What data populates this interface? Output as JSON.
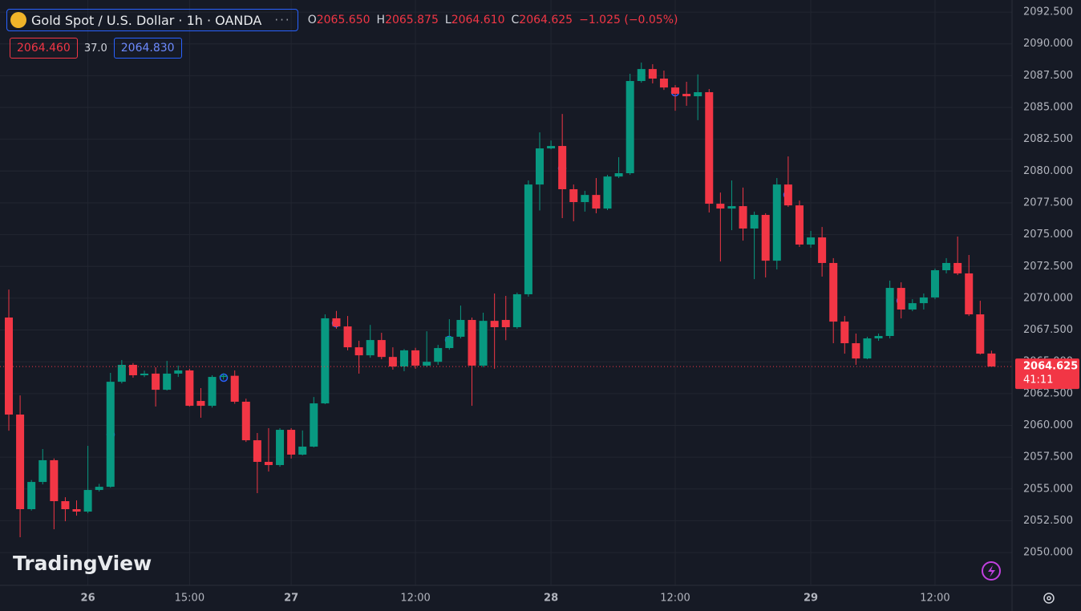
{
  "chart_data": {
    "type": "candlestick",
    "title": "Gold Spot / U.S. Dollar · 1h · OANDA",
    "legend_letters": [
      "O",
      "H",
      "L",
      "C"
    ],
    "legend_values": [
      "2065.650",
      "2065.875",
      "2064.610",
      "2064.625"
    ],
    "change": "−1.025 (−0.05%)",
    "bid": "2064.460",
    "spread": "37.0",
    "ask": "2064.830",
    "countdown": "41:11",
    "watermark": "TradingView",
    "up_color": "#089981",
    "down_color": "#f23645",
    "grid": true,
    "categories": [
      null,
      null,
      null,
      null,
      null,
      null,
      null,
      "26",
      null,
      null,
      null,
      null,
      null,
      null,
      null,
      null,
      "15:00",
      null,
      null,
      null,
      null,
      null,
      null,
      null,
      null,
      "27",
      null,
      null,
      null,
      null,
      null,
      null,
      null,
      null,
      null,
      null,
      "12:00",
      null,
      null,
      null,
      null,
      null,
      null,
      null,
      null,
      null,
      null,
      null,
      "28",
      null,
      null,
      null,
      null,
      null,
      null,
      null,
      null,
      null,
      null,
      "12:00",
      null,
      null,
      null,
      null,
      null,
      null,
      null,
      null,
      null,
      null,
      null,
      "29",
      null,
      null,
      null,
      null,
      null,
      null,
      null,
      null,
      null,
      null,
      "12:00",
      null,
      null,
      null,
      null,
      null
    ],
    "open": [
      2068.48,
      2060.85,
      2053.41,
      2055.55,
      2057.26,
      2054.04,
      2053.41,
      2053.22,
      2054.92,
      2055.17,
      2063.43,
      2064.76,
      2063.94,
      2064.07,
      2062.8,
      2064.07,
      2064.32,
      2061.92,
      2061.54,
      2063.81,
      2063.9,
      2061.86,
      2058.83,
      2057.13,
      2056.88,
      2059.65,
      2057.7,
      2058.33,
      2061.73,
      2068.42,
      2067.78,
      2066.14,
      2065.51,
      2066.71,
      2065.38,
      2064.63,
      2065.9,
      2064.7,
      2065.0,
      2066.08,
      2066.97,
      2068.29,
      2064.7,
      2068.22,
      2068.29,
      2067.72,
      2070.31,
      2078.94,
      2081.78,
      2081.97,
      2078.57,
      2077.56,
      2078.12,
      2077.05,
      2079.57,
      2079.83,
      2087.08,
      2088.02,
      2087.27,
      2086.57,
      2086.07,
      2085.88,
      2086.2,
      2077.43,
      2077.05,
      2077.24,
      2075.48,
      2076.55,
      2072.95,
      2078.94,
      2077.3,
      2074.22,
      2074.78,
      2072.77,
      2068.16,
      2066.46,
      2065.26,
      2066.84,
      2067.03,
      2070.81,
      2069.11,
      2069.61,
      2070.06,
      2072.2,
      2072.77,
      2071.95,
      2068.73,
      2065.65
    ],
    "high": [
      2070.68,
      2062.36,
      2055.7,
      2058.14,
      2057.4,
      2054.35,
      2054.1,
      2058.39,
      2055.4,
      2064.13,
      2065.14,
      2064.9,
      2064.3,
      2064.57,
      2065.07,
      2064.7,
      2064.45,
      2062.93,
      2063.94,
      2064.1,
      2064.32,
      2062.1,
      2059.4,
      2059.78,
      2059.78,
      2059.78,
      2059.6,
      2062.23,
      2068.73,
      2069.0,
      2068.6,
      2066.65,
      2067.9,
      2067.28,
      2066.14,
      2066.0,
      2066.1,
      2067.4,
      2066.33,
      2068.35,
      2069.42,
      2068.48,
      2068.86,
      2070.37,
      2070.18,
      2070.44,
      2079.26,
      2083.04,
      2082.4,
      2084.49,
      2078.94,
      2078.44,
      2079.45,
      2079.7,
      2081.09,
      2087.65,
      2088.53,
      2088.4,
      2087.9,
      2086.76,
      2087.02,
      2087.6,
      2086.45,
      2078.31,
      2079.26,
      2078.7,
      2076.81,
      2076.68,
      2079.45,
      2081.15,
      2077.68,
      2075.29,
      2075.6,
      2073.15,
      2068.6,
      2067.22,
      2066.97,
      2067.22,
      2071.38,
      2071.25,
      2069.92,
      2070.37,
      2072.33,
      2073.15,
      2074.85,
      2073.4,
      2069.8,
      2065.875
    ],
    "low": [
      2059.58,
      2051.2,
      2053.3,
      2055.36,
      2051.83,
      2052.46,
      2052.9,
      2053.1,
      2054.8,
      2055.1,
      2063.3,
      2063.75,
      2063.8,
      2061.48,
      2062.74,
      2063.81,
      2061.48,
      2060.6,
      2061.4,
      2063.6,
      2061.7,
      2058.7,
      2054.67,
      2056.37,
      2056.75,
      2057.39,
      2057.64,
      2058.27,
      2061.67,
      2067.6,
      2065.9,
      2064.07,
      2065.32,
      2065.2,
      2064.38,
      2064.26,
      2064.45,
      2064.57,
      2064.76,
      2065.95,
      2066.84,
      2061.54,
      2064.57,
      2064.45,
      2066.7,
      2067.6,
      2070.12,
      2076.9,
      2081.71,
      2076.3,
      2076.05,
      2076.81,
      2076.68,
      2076.93,
      2079.45,
      2079.7,
      2086.95,
      2086.89,
      2086.38,
      2084.74,
      2085.13,
      2084.0,
      2076.74,
      2072.89,
      2075.35,
      2074.53,
      2071.5,
      2071.63,
      2072.26,
      2077.18,
      2074.03,
      2073.97,
      2071.7,
      2066.46,
      2065.64,
      2064.76,
      2065.2,
      2066.65,
      2066.84,
      2068.41,
      2068.98,
      2069.11,
      2069.92,
      2071.95,
      2071.82,
      2068.6,
      2065.57,
      2064.61
    ],
    "close": [
      2060.85,
      2053.41,
      2055.55,
      2057.26,
      2054.04,
      2053.41,
      2053.22,
      2054.92,
      2055.17,
      2063.43,
      2064.76,
      2063.94,
      2064.07,
      2062.8,
      2064.07,
      2064.32,
      2061.54,
      2061.54,
      2063.81,
      2063.9,
      2061.86,
      2058.83,
      2057.13,
      2056.88,
      2059.65,
      2057.7,
      2058.33,
      2061.73,
      2068.42,
      2067.78,
      2066.14,
      2065.51,
      2066.71,
      2065.38,
      2064.63,
      2065.9,
      2064.7,
      2065.0,
      2066.08,
      2066.97,
      2068.29,
      2064.7,
      2068.22,
      2067.72,
      2067.72,
      2070.31,
      2078.94,
      2081.78,
      2081.97,
      2078.57,
      2077.56,
      2078.12,
      2077.05,
      2079.57,
      2079.83,
      2087.08,
      2088.02,
      2087.27,
      2086.57,
      2086.07,
      2085.88,
      2086.2,
      2077.43,
      2077.05,
      2077.24,
      2075.48,
      2076.55,
      2072.95,
      2078.94,
      2077.3,
      2074.22,
      2074.78,
      2072.77,
      2068.16,
      2066.46,
      2065.26,
      2066.84,
      2067.03,
      2070.81,
      2069.11,
      2069.61,
      2070.06,
      2072.2,
      2072.77,
      2071.95,
      2068.73,
      2065.64,
      2064.625
    ],
    "ylim": [
      2047.42,
      2093.45
    ],
    "yticks": [
      {
        "value": 2050,
        "label": "2050.000"
      },
      {
        "value": 2052.5,
        "label": "2052.500"
      },
      {
        "value": 2055,
        "label": "2055.000"
      },
      {
        "value": 2057.5,
        "label": "2057.500"
      },
      {
        "value": 2060,
        "label": "2060.000"
      },
      {
        "value": 2062.5,
        "label": "2062.500"
      },
      {
        "value": 2065,
        "label": "2065.000"
      },
      {
        "value": 2067.5,
        "label": "2067.500"
      },
      {
        "value": 2070,
        "label": "2070.000"
      },
      {
        "value": 2072.5,
        "label": "2072.500"
      },
      {
        "value": 2075,
        "label": "2075.000"
      },
      {
        "value": 2077.5,
        "label": "2077.500"
      },
      {
        "value": 2080,
        "label": "2080.000"
      },
      {
        "value": 2082.5,
        "label": "2082.500"
      },
      {
        "value": 2085,
        "label": "2085.000"
      },
      {
        "value": 2087.5,
        "label": "2087.500"
      },
      {
        "value": 2090,
        "label": "2090.000"
      },
      {
        "value": 2092.5,
        "label": "2092.500"
      }
    ]
  }
}
